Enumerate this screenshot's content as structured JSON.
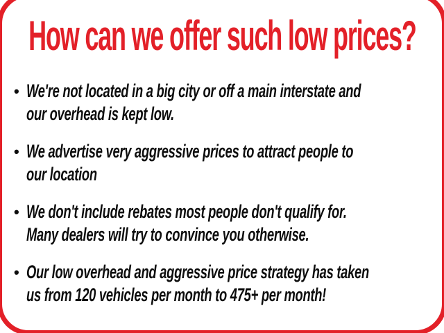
{
  "slide": {
    "title": "How can we offer such low prices?",
    "bullet_marker": "•",
    "bullets": [
      {
        "text": "We're not located in a big city or off a main interstate and\nour overhead is kept low."
      },
      {
        "text": "We advertise very aggressive prices to attract people to\nour location"
      },
      {
        "text": "We don't include rebates most people don't qualify for.\nMany dealers will try to convince you otherwise."
      },
      {
        "text": "Our low overhead and aggressive price strategy has taken\nus from 120 vehicles per month to 475+ per month!"
      }
    ],
    "colors": {
      "accent_red": "#e32028",
      "text_black": "#0d0d0d",
      "background": "#ffffff"
    }
  }
}
